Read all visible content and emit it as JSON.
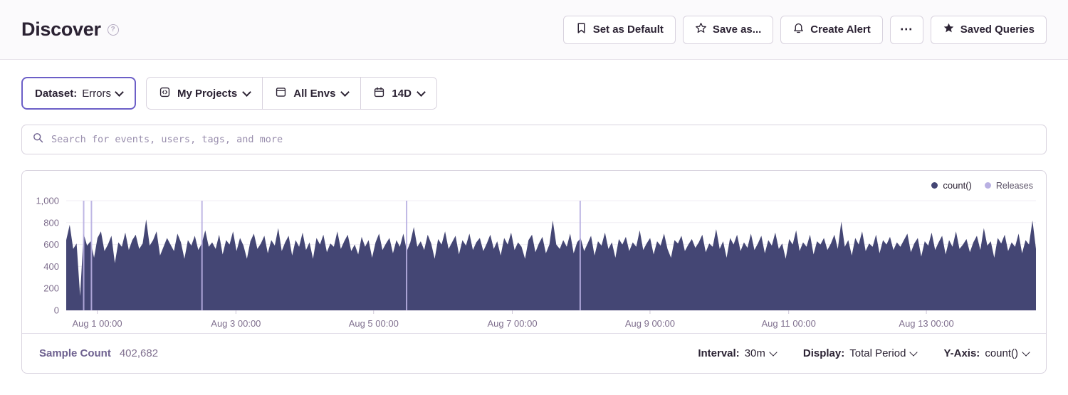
{
  "header": {
    "title": "Discover",
    "buttons": {
      "set_default": "Set as Default",
      "save_as": "Save as...",
      "create_alert": "Create Alert",
      "more_glyph": "⋯",
      "saved_queries": "Saved Queries"
    }
  },
  "filters": {
    "dataset_label": "Dataset:",
    "dataset_value": "Errors",
    "projects": "My Projects",
    "environments": "All Envs",
    "date_range": "14D"
  },
  "search": {
    "placeholder": "Search for events, users, tags, and more"
  },
  "chart_data": {
    "type": "area",
    "title": "",
    "ylim": [
      0,
      1000
    ],
    "grid": true,
    "legend_position": "top-right",
    "y_ticks": [
      {
        "label": "0",
        "value": 0
      },
      {
        "label": "200",
        "value": 200
      },
      {
        "label": "400",
        "value": 400
      },
      {
        "label": "600",
        "value": 600
      },
      {
        "label": "800",
        "value": 800
      },
      {
        "label": "1,000",
        "value": 1000
      }
    ],
    "x_ticks": [
      {
        "label": "Aug 1 00:00",
        "pos": 0.032
      },
      {
        "label": "Aug 3 00:00",
        "pos": 0.175
      },
      {
        "label": "Aug 5 00:00",
        "pos": 0.317
      },
      {
        "label": "Aug 7 00:00",
        "pos": 0.46
      },
      {
        "label": "Aug 9 00:00",
        "pos": 0.602
      },
      {
        "label": "Aug 11 00:00",
        "pos": 0.745
      },
      {
        "label": "Aug 13 00:00",
        "pos": 0.887
      }
    ],
    "series": [
      {
        "name": "count()",
        "color": "#444674",
        "values": [
          640,
          780,
          560,
          610,
          130,
          700,
          590,
          630,
          480,
          660,
          720,
          540,
          600,
          680,
          430,
          620,
          580,
          710,
          550,
          640,
          690,
          560,
          610,
          830,
          590,
          640,
          720,
          500,
          580,
          660,
          600,
          540,
          700,
          620,
          470,
          640,
          590,
          680,
          550,
          610,
          730,
          580,
          620,
          560,
          690,
          510,
          640,
          600,
          720,
          540,
          660,
          590,
          470,
          630,
          700,
          560,
          610,
          680,
          520,
          640,
          590,
          750,
          540,
          620,
          680,
          500,
          640,
          580,
          710,
          550,
          620,
          470,
          660,
          600,
          690,
          530,
          610,
          580,
          720,
          560,
          630,
          690,
          540,
          600,
          510,
          670,
          580,
          640,
          480,
          620,
          700,
          550,
          610,
          660,
          520,
          640,
          580,
          700,
          540,
          620,
          760,
          580,
          630,
          550,
          690,
          610,
          470,
          650,
          600,
          720,
          560,
          620,
          680,
          510,
          640,
          590,
          700,
          550,
          620,
          660,
          540,
          610,
          690,
          560,
          630,
          500,
          660,
          600,
          710,
          550,
          620,
          580,
          470,
          640,
          690,
          530,
          610,
          670,
          520,
          600,
          820,
          600,
          560,
          640,
          580,
          700,
          520,
          620,
          660,
          540,
          610,
          680,
          500,
          630,
          590,
          710,
          560,
          620,
          480,
          650,
          600,
          670,
          540,
          620,
          580,
          730,
          550,
          610,
          660,
          510,
          630,
          590,
          700,
          560,
          480,
          640,
          610,
          680,
          540,
          600,
          650,
          570,
          620,
          690,
          530,
          610,
          580,
          740,
          560,
          630,
          480,
          660,
          600,
          690,
          540,
          620,
          570,
          700,
          550,
          610,
          680,
          520,
          640,
          590,
          710,
          560,
          610,
          470,
          650,
          600,
          730,
          540,
          620,
          580,
          690,
          510,
          630,
          600,
          660,
          550,
          610,
          690,
          560,
          810,
          580,
          640,
          500,
          660,
          600,
          720,
          540,
          610,
          580,
          690,
          520,
          640,
          600,
          670,
          550,
          620,
          580,
          640,
          700,
          530,
          610,
          660,
          490,
          630,
          590,
          710,
          550,
          620,
          680,
          510,
          640,
          580,
          720,
          560,
          600,
          650,
          530,
          620,
          680,
          550,
          750,
          590,
          630,
          480,
          660,
          610,
          690,
          540,
          620,
          580,
          700,
          520,
          640,
          600,
          820,
          560
        ]
      }
    ],
    "releases": {
      "name": "Releases",
      "color": "#b9b0e2",
      "positions": [
        0.018,
        0.026,
        0.14,
        0.351,
        0.53
      ]
    }
  },
  "footer": {
    "sample_count_label": "Sample Count",
    "sample_count_value": "402,682",
    "interval_label": "Interval:",
    "interval_value": "30m",
    "display_label": "Display:",
    "display_value": "Total Period",
    "yaxis_label": "Y-Axis:",
    "yaxis_value": "count()"
  }
}
